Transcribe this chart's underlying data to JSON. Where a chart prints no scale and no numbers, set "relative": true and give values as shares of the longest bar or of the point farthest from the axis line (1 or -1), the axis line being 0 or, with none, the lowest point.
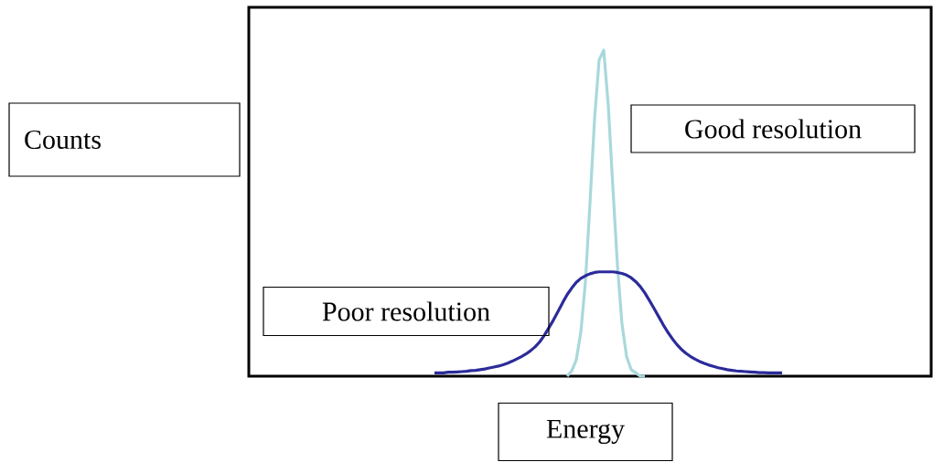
{
  "chart_data": {
    "type": "line",
    "relative": true,
    "xlabel": "Energy",
    "annotations": [
      "Counts"
    ],
    "legend": false,
    "marker": "none",
    "categories": [
      null,
      null,
      null,
      null,
      null,
      null,
      null,
      null,
      null,
      null,
      null,
      null,
      null,
      null,
      null,
      null,
      null,
      null,
      null,
      null,
      null,
      null,
      null,
      null,
      null,
      null,
      null,
      null,
      null,
      null,
      null,
      null,
      null,
      null,
      null,
      null,
      null,
      null,
      null,
      null,
      null,
      null,
      null,
      null,
      null,
      null,
      null,
      null,
      null,
      null,
      null,
      null,
      null,
      null,
      null,
      null,
      null,
      null,
      null,
      null,
      null,
      null,
      null,
      null,
      null,
      null,
      null,
      null,
      null,
      null,
      null,
      null,
      null,
      null,
      null,
      null,
      null
    ],
    "series": [
      {
        "name": "Good resolution",
        "color": "#a8d8dc",
        "values": [
          null,
          null,
          null,
          null,
          null,
          null,
          null,
          null,
          null,
          null,
          null,
          null,
          null,
          null,
          null,
          null,
          null,
          null,
          null,
          null,
          null,
          null,
          null,
          null,
          null,
          null,
          null,
          null,
          null,
          0.0,
          0.016,
          0.05,
          0.135,
          0.29,
          0.53,
          0.79,
          0.97,
          1.0,
          0.83,
          0.58,
          0.34,
          0.16,
          0.06,
          0.02,
          0.01,
          0.0,
          0.0,
          null,
          null,
          null,
          null,
          null,
          null,
          null,
          null,
          null,
          null,
          null,
          null,
          null,
          null,
          null,
          null,
          null,
          null,
          null,
          null,
          null,
          null,
          null,
          null,
          null,
          null,
          null,
          null,
          null,
          null
        ]
      },
      {
        "name": "Poor resolution",
        "color": "#2b2b9a",
        "values": [
          0.01,
          0.01,
          0.01,
          0.012,
          0.012,
          0.013,
          0.014,
          0.015,
          0.017,
          0.018,
          0.02,
          0.022,
          0.025,
          0.028,
          0.031,
          0.035,
          0.04,
          0.046,
          0.053,
          0.06,
          0.068,
          0.078,
          0.09,
          0.105,
          0.125,
          0.148,
          0.172,
          0.198,
          0.225,
          0.25,
          0.27,
          0.288,
          0.3,
          0.308,
          0.314,
          0.318,
          0.32,
          0.32,
          0.32,
          0.32,
          0.318,
          0.315,
          0.31,
          0.302,
          0.29,
          0.275,
          0.255,
          0.232,
          0.208,
          0.183,
          0.158,
          0.135,
          0.115,
          0.097,
          0.082,
          0.07,
          0.06,
          0.052,
          0.045,
          0.039,
          0.034,
          0.03,
          0.026,
          0.023,
          0.02,
          0.018,
          0.016,
          0.015,
          0.014,
          0.013,
          0.012,
          0.011,
          0.011,
          0.01,
          0.01,
          0.01,
          0.01
        ]
      }
    ]
  }
}
